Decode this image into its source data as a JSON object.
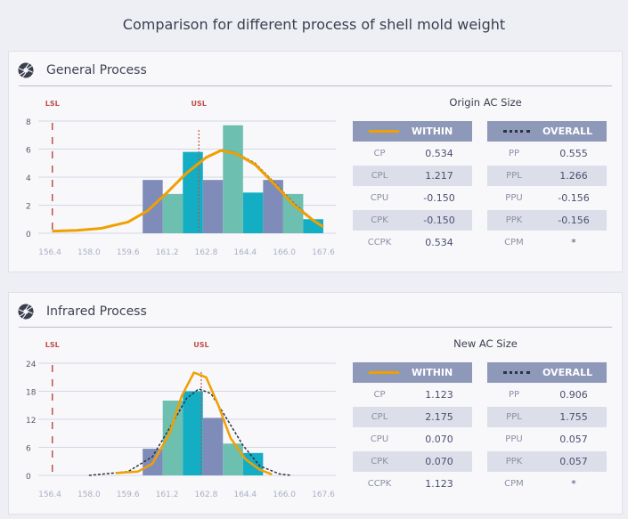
{
  "title": "Comparison for different process of shell mold weight",
  "panels": [
    {
      "name": "General Process",
      "subtitle": "Origin AC Size",
      "within": {
        "label": "WITHIN",
        "rows": [
          [
            "CP",
            "0.534"
          ],
          [
            "CPL",
            "1.217"
          ],
          [
            "CPU",
            "-0.150"
          ],
          [
            "CPK",
            "-0.150"
          ],
          [
            "CCPK",
            "0.534"
          ]
        ]
      },
      "overall": {
        "label": "OVERALL",
        "rows": [
          [
            "PP",
            "0.555"
          ],
          [
            "PPL",
            "1.266"
          ],
          [
            "PPU",
            "-0.156"
          ],
          [
            "PPK",
            "-0.156"
          ],
          [
            "CPM",
            "*"
          ]
        ]
      }
    },
    {
      "name": "Infrared Process",
      "subtitle": "New AC Size",
      "within": {
        "label": "WITHIN",
        "rows": [
          [
            "CP",
            "1.123"
          ],
          [
            "CPL",
            "2.175"
          ],
          [
            "CPU",
            "0.070"
          ],
          [
            "CPK",
            "0.070"
          ],
          [
            "CCPK",
            "1.123"
          ]
        ]
      },
      "overall": {
        "label": "OVERALL",
        "rows": [
          [
            "PP",
            "0.906"
          ],
          [
            "PPL",
            "1.755"
          ],
          [
            "PPU",
            "0.057"
          ],
          [
            "PPK",
            "0.057"
          ],
          [
            "CPM",
            "*"
          ]
        ]
      }
    }
  ],
  "colors": {
    "within": "#f0a000",
    "overall": "#2c3245",
    "spec": "#c0504d",
    "bars": [
      "#7f8cba",
      "#6dbfb0",
      "#14aec4"
    ],
    "header": "#8e99ba"
  },
  "chart_data": [
    {
      "type": "bar",
      "grid": true,
      "xlim": [
        156.4,
        167.6
      ],
      "ylim": [
        0,
        8
      ],
      "xticks": [
        "156.4",
        "158.0",
        "159.6",
        "161.2",
        "162.8",
        "164.4",
        "166.0",
        "167.6"
      ],
      "yticks": [
        "0",
        "2",
        "4",
        "6",
        "8"
      ],
      "spec_limits": [
        {
          "label": "LSL",
          "x": 156.5
        },
        {
          "label": "USL",
          "x": 162.5
        }
      ],
      "bin_start": 160.2,
      "bin_width": 0.822,
      "values": [
        3.8,
        2.8,
        5.8,
        3.8,
        7.7,
        2.9,
        3.8,
        2.8,
        1.0
      ],
      "curves": [
        {
          "kind": "within",
          "x": [
            156.5,
            157.5,
            158.5,
            159.6,
            160.4,
            161.2,
            162.0,
            162.8,
            163.4,
            164.0,
            164.8,
            165.6,
            166.4,
            167.2,
            167.6
          ],
          "y": [
            0.15,
            0.2,
            0.35,
            0.8,
            1.6,
            2.9,
            4.3,
            5.4,
            5.9,
            5.7,
            4.9,
            3.5,
            2.0,
            0.9,
            0.45
          ]
        },
        {
          "kind": "overall",
          "x": [
            156.5,
            157.5,
            158.5,
            159.6,
            160.4,
            161.2,
            162.0,
            162.8,
            163.4,
            164.0,
            164.8,
            165.6,
            166.4,
            167.2,
            167.6
          ],
          "y": [
            0.15,
            0.2,
            0.35,
            0.8,
            1.6,
            2.9,
            4.3,
            5.4,
            5.95,
            5.75,
            5.0,
            3.6,
            2.1,
            0.95,
            0.45
          ]
        }
      ]
    },
    {
      "type": "bar",
      "grid": true,
      "xlim": [
        156.4,
        167.6
      ],
      "ylim": [
        0,
        24
      ],
      "xticks": [
        "156.4",
        "158.0",
        "159.6",
        "161.2",
        "162.8",
        "164.4",
        "166.0",
        "167.6"
      ],
      "yticks": [
        "0",
        "6",
        "12",
        "18",
        "24"
      ],
      "spec_limits": [
        {
          "label": "LSL",
          "x": 156.5
        },
        {
          "label": "USL",
          "x": 162.6
        }
      ],
      "bin_start": 160.2,
      "bin_width": 0.822,
      "values": [
        5.7,
        16,
        18,
        12.3,
        6.8,
        4.8
      ],
      "curves": [
        {
          "kind": "within",
          "x": [
            159.1,
            160.0,
            160.6,
            161.3,
            161.8,
            162.3,
            162.8,
            163.3,
            163.8,
            164.4,
            165.0,
            165.5
          ],
          "y": [
            0.5,
            0.8,
            2.5,
            9,
            17,
            22,
            21,
            15,
            8,
            3.5,
            1.2,
            0.2
          ]
        },
        {
          "kind": "overall",
          "x": [
            158.0,
            159.6,
            160.6,
            161.4,
            162.0,
            162.5,
            163.0,
            163.6,
            164.3,
            165.0,
            165.8,
            166.3
          ],
          "y": [
            0,
            0.8,
            4,
            11,
            16.5,
            18.5,
            17.5,
            12.5,
            6.5,
            2,
            0.3,
            0
          ]
        }
      ]
    }
  ]
}
